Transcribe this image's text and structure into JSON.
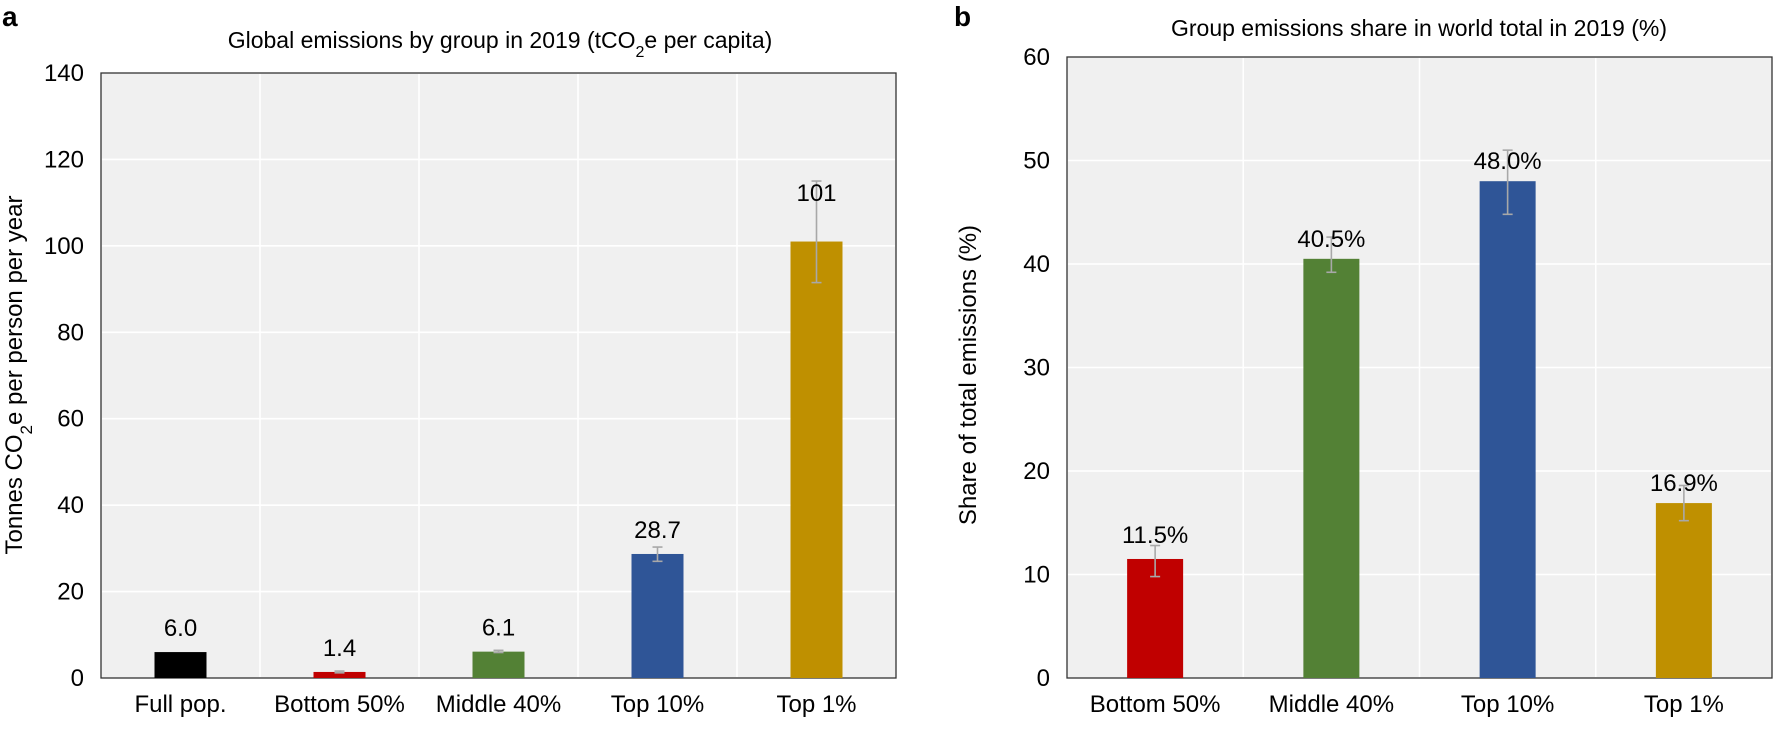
{
  "chart_data": [
    {
      "panel": "a",
      "type": "bar",
      "title_parts": {
        "pre": "Global emissions by group in 2019 (tCO",
        "sub": "2",
        "post": "e per capita)"
      },
      "ylabel_parts": {
        "pre": "Tonnes CO",
        "sub": "2",
        "post": "e per person per year"
      },
      "xlabel": "",
      "ylim": [
        0,
        140
      ],
      "yticks": [
        0,
        20,
        40,
        60,
        80,
        100,
        120,
        140
      ],
      "grid": true,
      "categories": [
        "Full pop.",
        "Bottom 50%",
        "Middle 40%",
        "Top 10%",
        "Top 1%"
      ],
      "values": [
        6.0,
        1.4,
        6.1,
        28.7,
        101
      ],
      "value_labels": [
        "6.0",
        "1.4",
        "6.1",
        "28.7",
        "101"
      ],
      "error_low": [
        null,
        1.2,
        5.9,
        27.0,
        91.5
      ],
      "error_high": [
        null,
        1.6,
        6.4,
        30.3,
        115.0
      ],
      "colors": [
        "#000000",
        "#c00000",
        "#538135",
        "#2f5597",
        "#bf9000"
      ]
    },
    {
      "panel": "b",
      "type": "bar",
      "title_parts": {
        "pre": "Group emissions share in world total in 2019 (%)",
        "sub": "",
        "post": ""
      },
      "ylabel_parts": {
        "pre": "Share of total emissions (%)",
        "sub": "",
        "post": ""
      },
      "xlabel": "",
      "ylim": [
        0,
        60
      ],
      "yticks": [
        0,
        10,
        20,
        30,
        40,
        50,
        60
      ],
      "grid": true,
      "categories": [
        "Bottom 50%",
        "Middle 40%",
        "Top 10%",
        "Top 1%"
      ],
      "values": [
        11.5,
        40.5,
        48.0,
        16.9
      ],
      "value_labels": [
        "11.5%",
        "40.5%",
        "48.0%",
        "16.9%"
      ],
      "error_low": [
        9.8,
        39.2,
        44.8,
        15.2
      ],
      "error_high": [
        12.8,
        42.6,
        51.0,
        18.6
      ],
      "colors": [
        "#c00000",
        "#538135",
        "#2f5597",
        "#bf9000"
      ]
    }
  ]
}
